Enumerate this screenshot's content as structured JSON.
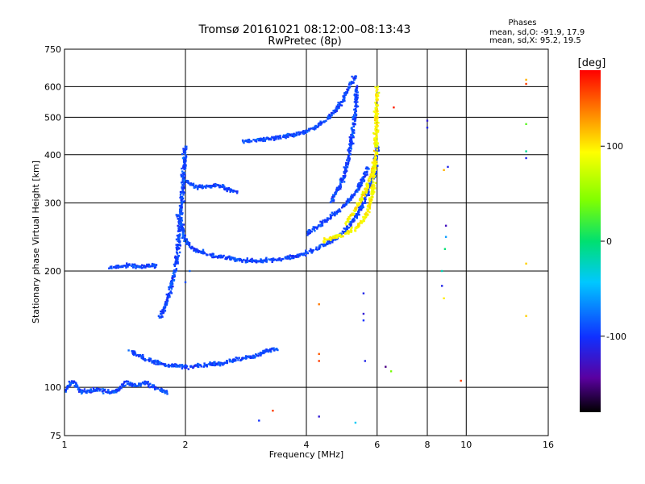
{
  "chart_data": {
    "type": "scatter",
    "title": "Tromsø 20161021 08:12:00–08:13:43",
    "subtitle": "RwPretec (8p)",
    "phase_stats": {
      "title": "Phases",
      "line_o": "mean, sd,O: -91.9, 17.9",
      "line_x": "mean, sd,X:  95.2, 19.5"
    },
    "xlabel": "Frequency [MHz]",
    "ylabel": "Stationary phase Virtual Height [km]",
    "x_scale": "log",
    "y_scale": "log",
    "xlim": [
      1,
      16
    ],
    "ylim": [
      75,
      750
    ],
    "x_ticks": [
      1,
      2,
      4,
      6,
      8,
      10,
      16
    ],
    "y_ticks": [
      75,
      100,
      200,
      300,
      400,
      500,
      600,
      750
    ],
    "x_gridlines": [
      2,
      4,
      6,
      8,
      10
    ],
    "y_gridlines": [
      100,
      200,
      300,
      400,
      500,
      600
    ],
    "colorbar": {
      "label": "[deg]",
      "range": [
        -180,
        180
      ],
      "ticks": [
        100,
        0,
        -100
      ]
    },
    "series": [
      {
        "mode": "O",
        "phase_deg": -92,
        "segments": [
          {
            "f": [
              1.0,
              1.05,
              1.1,
              1.2,
              1.3,
              1.35,
              1.42,
              1.5,
              1.6,
              1.7,
              1.8
            ],
            "h": [
              98,
              104,
              97,
              99,
              97,
              98,
              103,
              101,
              103,
              99,
              97
            ]
          },
          {
            "f": [
              1.3,
              1.4,
              1.45,
              1.55,
              1.62,
              1.7
            ],
            "h": [
              204,
              206,
              207,
              205,
              207,
              206
            ]
          },
          {
            "f": [
              1.45,
              1.5,
              1.6,
              1.7,
              1.8,
              1.88,
              1.95,
              2.05,
              2.2,
              2.4,
              2.6,
              2.8,
              3.0,
              3.2,
              3.4
            ],
            "h": [
              125,
              122,
              118,
              116,
              114,
              114,
              113,
              113,
              114,
              115,
              117,
              119,
              121,
              124,
              126
            ]
          },
          {
            "f": [
              1.72,
              1.78,
              1.84,
              1.9,
              1.94,
              1.97,
              2.0
            ],
            "h": [
              150,
              162,
              180,
              210,
              260,
              330,
              420
            ]
          },
          {
            "f": [
              1.92,
              2.0,
              2.1,
              2.3,
              2.6,
              3.0,
              3.4,
              3.8,
              4.2,
              4.6,
              5.0,
              5.3,
              5.6,
              5.9,
              6.0
            ],
            "h": [
              280,
              240,
              227,
              220,
              215,
              212,
              214,
              219,
              227,
              238,
              255,
              275,
              305,
              355,
              420
            ]
          },
          {
            "f": [
              2.0,
              2.1,
              2.25,
              2.4,
              2.55,
              2.7
            ],
            "h": [
              345,
              330,
              330,
              335,
              325,
              320
            ]
          },
          {
            "f": [
              2.8,
              3.0,
              3.3,
              3.6,
              3.9,
              4.2,
              4.5,
              4.8,
              5.0,
              5.15,
              5.3
            ],
            "h": [
              432,
              437,
              440,
              447,
              455,
              470,
              495,
              530,
              570,
              610,
              640
            ]
          },
          {
            "f": [
              4.6,
              4.9,
              5.1,
              5.2,
              5.3,
              5.35
            ],
            "h": [
              300,
              340,
              390,
              450,
              520,
              600
            ]
          },
          {
            "f": [
              4.0,
              4.3,
              4.6,
              4.9,
              5.1,
              5.3,
              5.5,
              5.7
            ],
            "h": [
              250,
              262,
              276,
              290,
              305,
              320,
              340,
              370
            ]
          }
        ]
      },
      {
        "mode": "X",
        "phase_deg": 95,
        "segments": [
          {
            "f": [
              4.4,
              4.7,
              5.0,
              5.3,
              5.5,
              5.7,
              5.85,
              5.95,
              6.0
            ],
            "h": [
              240,
              244,
              250,
              258,
              268,
              285,
              320,
              400,
              600
            ]
          },
          {
            "f": [
              5.0,
              5.2,
              5.4,
              5.6,
              5.8,
              5.9
            ],
            "h": [
              265,
              280,
              300,
              320,
              350,
              380
            ]
          }
        ]
      }
    ],
    "sparse_points": [
      {
        "f": 2.0,
        "h": 187,
        "phase_deg": -90
      },
      {
        "f": 2.05,
        "h": 200,
        "phase_deg": -80
      },
      {
        "f": 3.05,
        "h": 82,
        "phase_deg": -100
      },
      {
        "f": 3.3,
        "h": 87,
        "phase_deg": 160
      },
      {
        "f": 4.3,
        "h": 122,
        "phase_deg": 150
      },
      {
        "f": 4.3,
        "h": 117,
        "phase_deg": 160
      },
      {
        "f": 4.3,
        "h": 164,
        "phase_deg": 140
      },
      {
        "f": 4.3,
        "h": 84,
        "phase_deg": -120
      },
      {
        "f": 5.3,
        "h": 81,
        "phase_deg": -40
      },
      {
        "f": 5.55,
        "h": 175,
        "phase_deg": -110
      },
      {
        "f": 5.55,
        "h": 155,
        "phase_deg": -120
      },
      {
        "f": 5.55,
        "h": 149,
        "phase_deg": -100
      },
      {
        "f": 5.6,
        "h": 117,
        "phase_deg": -110
      },
      {
        "f": 6.3,
        "h": 113,
        "phase_deg": -150
      },
      {
        "f": 6.5,
        "h": 110,
        "phase_deg": 40
      },
      {
        "f": 6.6,
        "h": 530,
        "phase_deg": 170
      },
      {
        "f": 8.0,
        "h": 490,
        "phase_deg": -120
      },
      {
        "f": 8.0,
        "h": 470,
        "phase_deg": -110
      },
      {
        "f": 8.7,
        "h": 200,
        "phase_deg": -20
      },
      {
        "f": 8.7,
        "h": 183,
        "phase_deg": -110
      },
      {
        "f": 8.8,
        "h": 170,
        "phase_deg": 100
      },
      {
        "f": 8.8,
        "h": 365,
        "phase_deg": 120
      },
      {
        "f": 8.85,
        "h": 228,
        "phase_deg": 0
      },
      {
        "f": 8.9,
        "h": 245,
        "phase_deg": -60
      },
      {
        "f": 8.9,
        "h": 262,
        "phase_deg": -130
      },
      {
        "f": 9.0,
        "h": 372,
        "phase_deg": -110
      },
      {
        "f": 9.7,
        "h": 104,
        "phase_deg": 160
      },
      {
        "f": 14.1,
        "h": 625,
        "phase_deg": 120
      },
      {
        "f": 14.1,
        "h": 610,
        "phase_deg": 160
      },
      {
        "f": 14.1,
        "h": 480,
        "phase_deg": 30
      },
      {
        "f": 14.1,
        "h": 408,
        "phase_deg": -10
      },
      {
        "f": 14.1,
        "h": 392,
        "phase_deg": -110
      },
      {
        "f": 14.1,
        "h": 209,
        "phase_deg": 110
      },
      {
        "f": 14.1,
        "h": 153,
        "phase_deg": 110
      }
    ]
  }
}
